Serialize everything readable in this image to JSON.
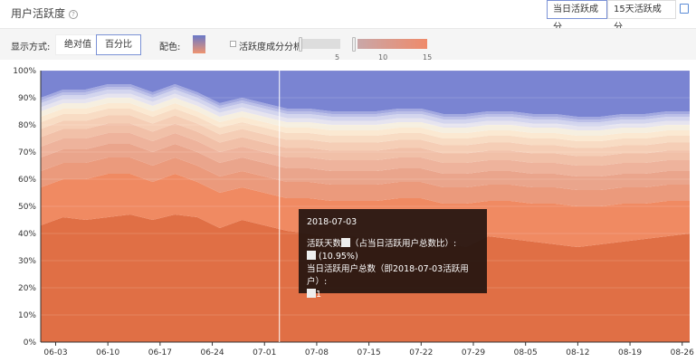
{
  "header": {
    "title": "用户活跃度",
    "help_icon": "question-circle-icon",
    "tabs": [
      {
        "label": "当日活跃成分",
        "active": true
      },
      {
        "label": "15天活跃成分",
        "active": false
      }
    ],
    "export_icon": "export-icon"
  },
  "toolbar": {
    "display_label": "显示方式:",
    "display_options": [
      {
        "label": "绝对值",
        "active": false
      },
      {
        "label": "百分比",
        "active": true
      }
    ],
    "color_label": "配色:",
    "analysis_label": "活跃度成分分析",
    "analysis_checked": false,
    "slider_ticks": [
      "5",
      "10",
      "15"
    ],
    "slider_range": [
      1,
      15
    ]
  },
  "tooltip": {
    "date": "2018-07-03",
    "line1": "活跃天数",
    "line1b": "（占当日活跃用户总数比）:",
    "line2": "(10.95%)",
    "line3": "当日活跃用户总数（即2018-07-03活跃用户）:",
    "line4": "1"
  },
  "chart_data": {
    "type": "area",
    "stacked": true,
    "normalized": true,
    "ylim": [
      0,
      100
    ],
    "y_ticks": [
      "0%",
      "10%",
      "20%",
      "30%",
      "40%",
      "50%",
      "60%",
      "70%",
      "80%",
      "90%",
      "100%"
    ],
    "x_ticks": [
      "06-03",
      "06-10",
      "06-17",
      "06-24",
      "07-01",
      "07-08",
      "07-15",
      "07-22",
      "07-29",
      "08-05",
      "08-12",
      "08-19",
      "08-26"
    ],
    "x": [
      "06-01",
      "06-04",
      "06-07",
      "06-10",
      "06-13",
      "06-16",
      "06-19",
      "06-22",
      "06-25",
      "06-28",
      "07-01",
      "07-04",
      "07-07",
      "07-10",
      "07-13",
      "07-16",
      "07-19",
      "07-22",
      "07-25",
      "07-28",
      "07-31",
      "08-03",
      "08-06",
      "08-09",
      "08-12",
      "08-15",
      "08-18",
      "08-21",
      "08-24",
      "08-27"
    ],
    "highlight_x": "07-03",
    "colors": [
      "#e06f45",
      "#f08a62",
      "#eb9a7c",
      "#eaa58c",
      "#eeb39c",
      "#f1c0a8",
      "#f5ceb6",
      "#f8dcc4",
      "#fbe9d2",
      "#f6efe0",
      "#e6e4ef",
      "#d3d5ee",
      "#bcc0e8",
      "#a3a9e0",
      "#7a84d2"
    ],
    "series": [
      {
        "values": [
          43,
          46,
          45,
          46,
          47,
          45,
          47,
          46,
          42,
          45,
          43,
          41,
          40,
          38,
          39,
          36,
          35,
          36,
          37,
          35,
          39,
          38,
          37,
          36,
          35,
          36,
          37,
          38,
          39,
          40
        ]
      },
      {
        "values": [
          14,
          14,
          15,
          16,
          15,
          14,
          15,
          13,
          13,
          12,
          12,
          12,
          13,
          14,
          13,
          16,
          18,
          17,
          14,
          16,
          13,
          14,
          14,
          15,
          15,
          14,
          14,
          13,
          13,
          12
        ]
      },
      {
        "values": [
          6,
          6,
          6,
          6,
          6,
          6,
          6,
          6,
          6,
          6,
          6,
          6,
          6,
          6,
          6,
          6,
          6,
          6,
          6,
          6,
          6,
          6,
          6,
          6,
          6,
          6,
          6,
          6,
          6,
          6
        ]
      },
      {
        "values": [
          5,
          5,
          5,
          5,
          5,
          5,
          5,
          5,
          5,
          5,
          5,
          5,
          5,
          5,
          5,
          5,
          5,
          5,
          5,
          5,
          5,
          5,
          5,
          5,
          5,
          5,
          5,
          5,
          5,
          5
        ]
      },
      {
        "values": [
          4,
          4,
          4,
          4,
          4,
          4,
          4,
          4,
          4,
          4,
          4,
          4,
          4,
          4,
          4,
          4,
          4,
          4,
          4,
          4,
          4,
          4,
          4,
          4,
          4,
          4,
          4,
          4,
          4,
          4
        ]
      },
      {
        "values": [
          3.5,
          3.5,
          3.5,
          3.5,
          3.5,
          3.5,
          3.5,
          3.5,
          3.5,
          3.5,
          3.5,
          3.5,
          3.5,
          3.5,
          3.5,
          3.5,
          3.5,
          3.5,
          3.5,
          3.5,
          3.5,
          3.5,
          3.5,
          3.5,
          3.5,
          3.5,
          3.5,
          3.5,
          3.5,
          3.5
        ]
      },
      {
        "values": [
          3,
          3,
          3,
          3,
          3,
          3,
          3,
          3,
          3,
          3,
          3,
          3,
          3,
          3,
          3,
          3,
          3,
          3,
          3,
          3,
          3,
          3,
          3,
          3,
          3,
          3,
          3,
          3,
          3,
          3
        ]
      },
      {
        "values": [
          2.5,
          2.5,
          2.5,
          2.5,
          2.5,
          2.5,
          2.5,
          2.5,
          2.5,
          2.5,
          2.5,
          2.5,
          2.5,
          2.5,
          2.5,
          2.5,
          2.5,
          2.5,
          2.5,
          2.5,
          2.5,
          2.5,
          2.5,
          2.5,
          2.5,
          2.5,
          2.5,
          2.5,
          2.5,
          2.5
        ]
      },
      {
        "values": [
          2,
          2,
          2,
          2,
          2,
          2,
          2,
          2,
          2,
          2,
          2,
          2,
          2,
          2,
          2,
          2,
          2,
          2,
          2,
          2,
          2,
          2,
          2,
          2,
          2,
          2,
          2,
          2,
          2,
          2
        ]
      },
      {
        "values": [
          2,
          2,
          2,
          2,
          2,
          2,
          2,
          2,
          2,
          2,
          2,
          2,
          2,
          2,
          2,
          2,
          2,
          2,
          2,
          2,
          2,
          2,
          2,
          2,
          2,
          2,
          2,
          2,
          2,
          2
        ]
      },
      {
        "values": [
          1.5,
          1.5,
          1.5,
          1.5,
          1.5,
          1.5,
          1.5,
          1.5,
          1.5,
          1.5,
          1.5,
          1.5,
          1.5,
          1.5,
          1.5,
          1.5,
          1.5,
          1.5,
          1.5,
          1.5,
          1.5,
          1.5,
          1.5,
          1.5,
          1.5,
          1.5,
          1.5,
          1.5,
          1.5,
          1.5
        ]
      },
      {
        "values": [
          1.5,
          1.5,
          1.5,
          1.5,
          1.5,
          1.5,
          1.5,
          1.5,
          1.5,
          1.5,
          1.5,
          1.5,
          1.5,
          1.5,
          1.5,
          1.5,
          1.5,
          1.5,
          1.5,
          1.5,
          1.5,
          1.5,
          1.5,
          1.5,
          1.5,
          1.5,
          1.5,
          1.5,
          1.5,
          1.5
        ]
      },
      {
        "values": [
          1,
          1,
          1,
          1,
          1,
          1,
          1,
          1,
          1,
          1,
          1,
          1,
          1,
          1,
          1,
          1,
          1,
          1,
          1,
          1,
          1,
          1,
          1,
          1,
          1,
          1,
          1,
          1,
          1,
          1
        ]
      },
      {
        "values": [
          1,
          1,
          1,
          1,
          1,
          1,
          1,
          1,
          1,
          1,
          1,
          1,
          1,
          1,
          1,
          1,
          1,
          1,
          1,
          1,
          1,
          1,
          1,
          1,
          1,
          1,
          1,
          1,
          1,
          1
        ]
      },
      {
        "values": [
          10,
          7,
          7,
          5,
          5,
          8,
          5,
          8,
          12,
          10,
          12,
          14,
          14,
          15,
          15,
          15,
          14,
          14,
          16,
          16,
          15,
          15,
          16,
          16,
          17,
          17,
          16,
          16,
          15,
          15
        ]
      }
    ]
  }
}
